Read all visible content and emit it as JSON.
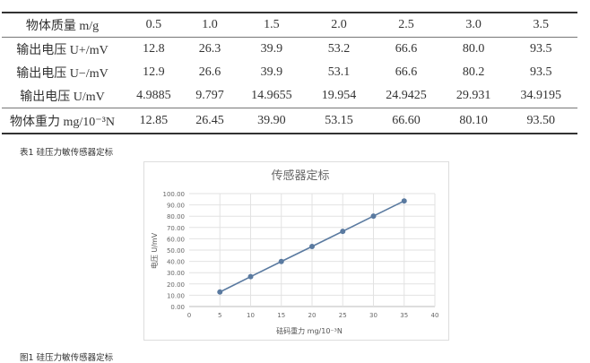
{
  "table": {
    "rows": [
      {
        "label": "物体质量 m/g",
        "values": [
          "0.5",
          "1.0",
          "1.5",
          "2.0",
          "2.5",
          "3.0",
          "3.5"
        ]
      },
      {
        "label": "输出电压 U+/mV",
        "values": [
          "12.8",
          "26.3",
          "39.9",
          "53.2",
          "66.6",
          "80.0",
          "93.5"
        ]
      },
      {
        "label": "输出电压 U−/mV",
        "values": [
          "12.9",
          "26.6",
          "39.9",
          "53.1",
          "66.6",
          "80.2",
          "93.5"
        ]
      },
      {
        "label": "输出电压 U/mV",
        "values": [
          "4.9885",
          "9.797",
          "14.9655",
          "19.954",
          "24.9425",
          "29.931",
          "34.9195"
        ]
      },
      {
        "label": "物体重力 mg/10⁻³N",
        "values": [
          "12.85",
          "26.45",
          "39.90",
          "53.15",
          "66.60",
          "80.10",
          "93.50"
        ]
      }
    ],
    "caption": "表1 硅压力敏传感器定标"
  },
  "chart_data": {
    "type": "line",
    "title": "传感器定标",
    "xlabel": "砝码重力 mg/10⁻³N",
    "ylabel": "电压 U/mV",
    "x": [
      5,
      10,
      15,
      20,
      25,
      30,
      35
    ],
    "y": [
      12.85,
      26.45,
      39.9,
      53.15,
      66.6,
      80.1,
      93.5
    ],
    "xlim": [
      0,
      40
    ],
    "ylim": [
      0,
      100
    ],
    "xticks": [
      "0",
      "5",
      "10",
      "15",
      "20",
      "25",
      "30",
      "35",
      "40"
    ],
    "yticks": [
      "0.00",
      "10.00",
      "20.00",
      "30.00",
      "40.00",
      "50.00",
      "60.00",
      "70.00",
      "80.00",
      "90.00",
      "100.00"
    ],
    "grid": true,
    "line_color": "#5a7aa0"
  },
  "figure_caption": "图1 硅压力敏传感器定标"
}
